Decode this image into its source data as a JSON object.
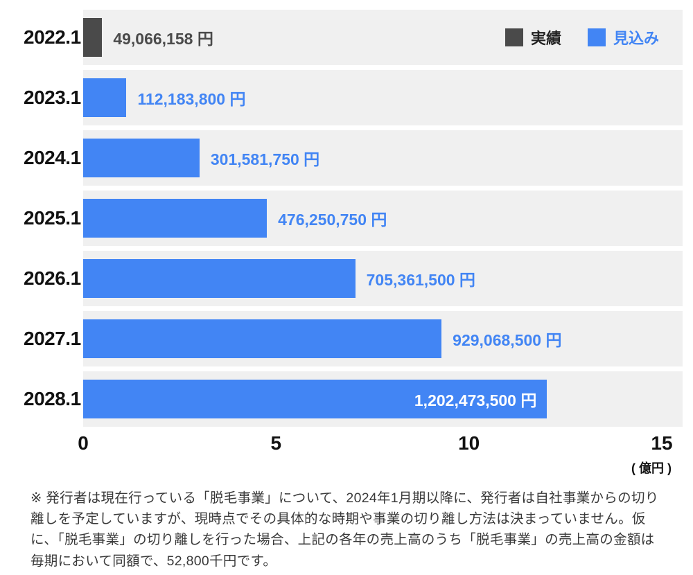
{
  "chart_data": {
    "type": "bar",
    "orientation": "horizontal",
    "categories": [
      "2022.1",
      "2023.1",
      "2024.1",
      "2025.1",
      "2026.1",
      "2027.1",
      "2028.1"
    ],
    "values": [
      49066158,
      112183800,
      301581750,
      476250750,
      705361500,
      929068500,
      1202473500
    ],
    "value_labels": [
      "49,066,158 円",
      "112,183,800 円",
      "301,581,750 円",
      "476,250,750 円",
      "705,361,500 円",
      "929,068,500 円",
      "1,202,473,500 円"
    ],
    "series_of_point": [
      "実績",
      "見込み",
      "見込み",
      "見込み",
      "見込み",
      "見込み",
      "見込み"
    ],
    "legend": [
      {
        "label": "実績",
        "color": "#4a4a4a"
      },
      {
        "label": "見込み",
        "color": "#4285f4"
      }
    ],
    "x_axis": {
      "min": 0,
      "max": 15,
      "ticks": [
        "0",
        "5",
        "10",
        "15"
      ],
      "unit_label": "( 億円 )",
      "unit": "億円"
    },
    "axis_scale_yen_per_unit": 100000000,
    "colors": {
      "row_track": "#f0f0f0",
      "inside_label_text": "#ffffff"
    }
  },
  "footnote": "※ 発行者は現在行っている「脱毛事業」について、2024年1月期以降に、発行者は自社事業からの切り離しを予定していますが、現時点でその具体的な時期や事業の切り離し方法は決まっていません。仮に、「脱毛事業」の切り離しを行った場合、上記の各年の売上高のうち「脱毛事業」の売上高の金額は毎期において同額で、52,800千円です。"
}
